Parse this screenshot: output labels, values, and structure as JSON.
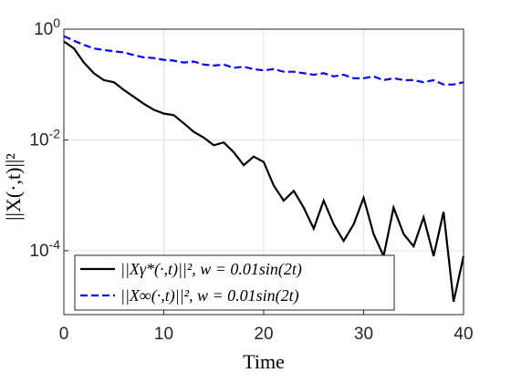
{
  "chart_data": {
    "type": "line",
    "xlabel": "Time",
    "ylabel": "||X(·,t)||²",
    "x": [
      0,
      1,
      2,
      3,
      4,
      5,
      6,
      7,
      8,
      9,
      10,
      11,
      12,
      13,
      14,
      15,
      16,
      17,
      18,
      19,
      20,
      21,
      22,
      23,
      24,
      25,
      26,
      27,
      28,
      29,
      30,
      31,
      32,
      33,
      34,
      35,
      36,
      37,
      38,
      39,
      40
    ],
    "series": [
      {
        "name": "||Xγ*(·,t)||², w = 0.01sin(2t)",
        "color": "#000000",
        "dash": false,
        "values": [
          0.6,
          0.45,
          0.25,
          0.16,
          0.12,
          0.11,
          0.08,
          0.06,
          0.045,
          0.035,
          0.03,
          0.028,
          0.02,
          0.014,
          0.011,
          0.008,
          0.009,
          0.006,
          0.0035,
          0.005,
          0.004,
          0.0015,
          0.0008,
          0.0012,
          0.0006,
          0.00025,
          0.0008,
          0.0003,
          0.00015,
          0.0003,
          0.0009,
          0.0002,
          8e-05,
          0.0006,
          0.0002,
          0.00012,
          0.0004,
          8e-05,
          0.0005,
          1.2e-05,
          8e-05
        ]
      },
      {
        "name": "||X∞(·,t)||², w = 0.01sin(2t)",
        "color": "#0000ff",
        "dash": true,
        "values": [
          0.75,
          0.62,
          0.52,
          0.45,
          0.42,
          0.4,
          0.38,
          0.34,
          0.31,
          0.3,
          0.28,
          0.27,
          0.25,
          0.26,
          0.23,
          0.22,
          0.23,
          0.2,
          0.21,
          0.19,
          0.18,
          0.19,
          0.17,
          0.17,
          0.16,
          0.15,
          0.16,
          0.14,
          0.15,
          0.13,
          0.13,
          0.14,
          0.12,
          0.13,
          0.12,
          0.12,
          0.11,
          0.12,
          0.1,
          0.1,
          0.11
        ]
      }
    ],
    "xlim": [
      0,
      40
    ],
    "xticks": [
      0,
      10,
      20,
      30,
      40
    ],
    "ylim": [
      7e-06,
      1
    ],
    "yticks": [
      {
        "value": 0.0001,
        "label": "10^-4"
      },
      {
        "value": 0.01,
        "label": "10^-2"
      },
      {
        "value": 1,
        "label": "10^0"
      }
    ],
    "log_y": true,
    "grid": true,
    "legend": "lower left"
  }
}
